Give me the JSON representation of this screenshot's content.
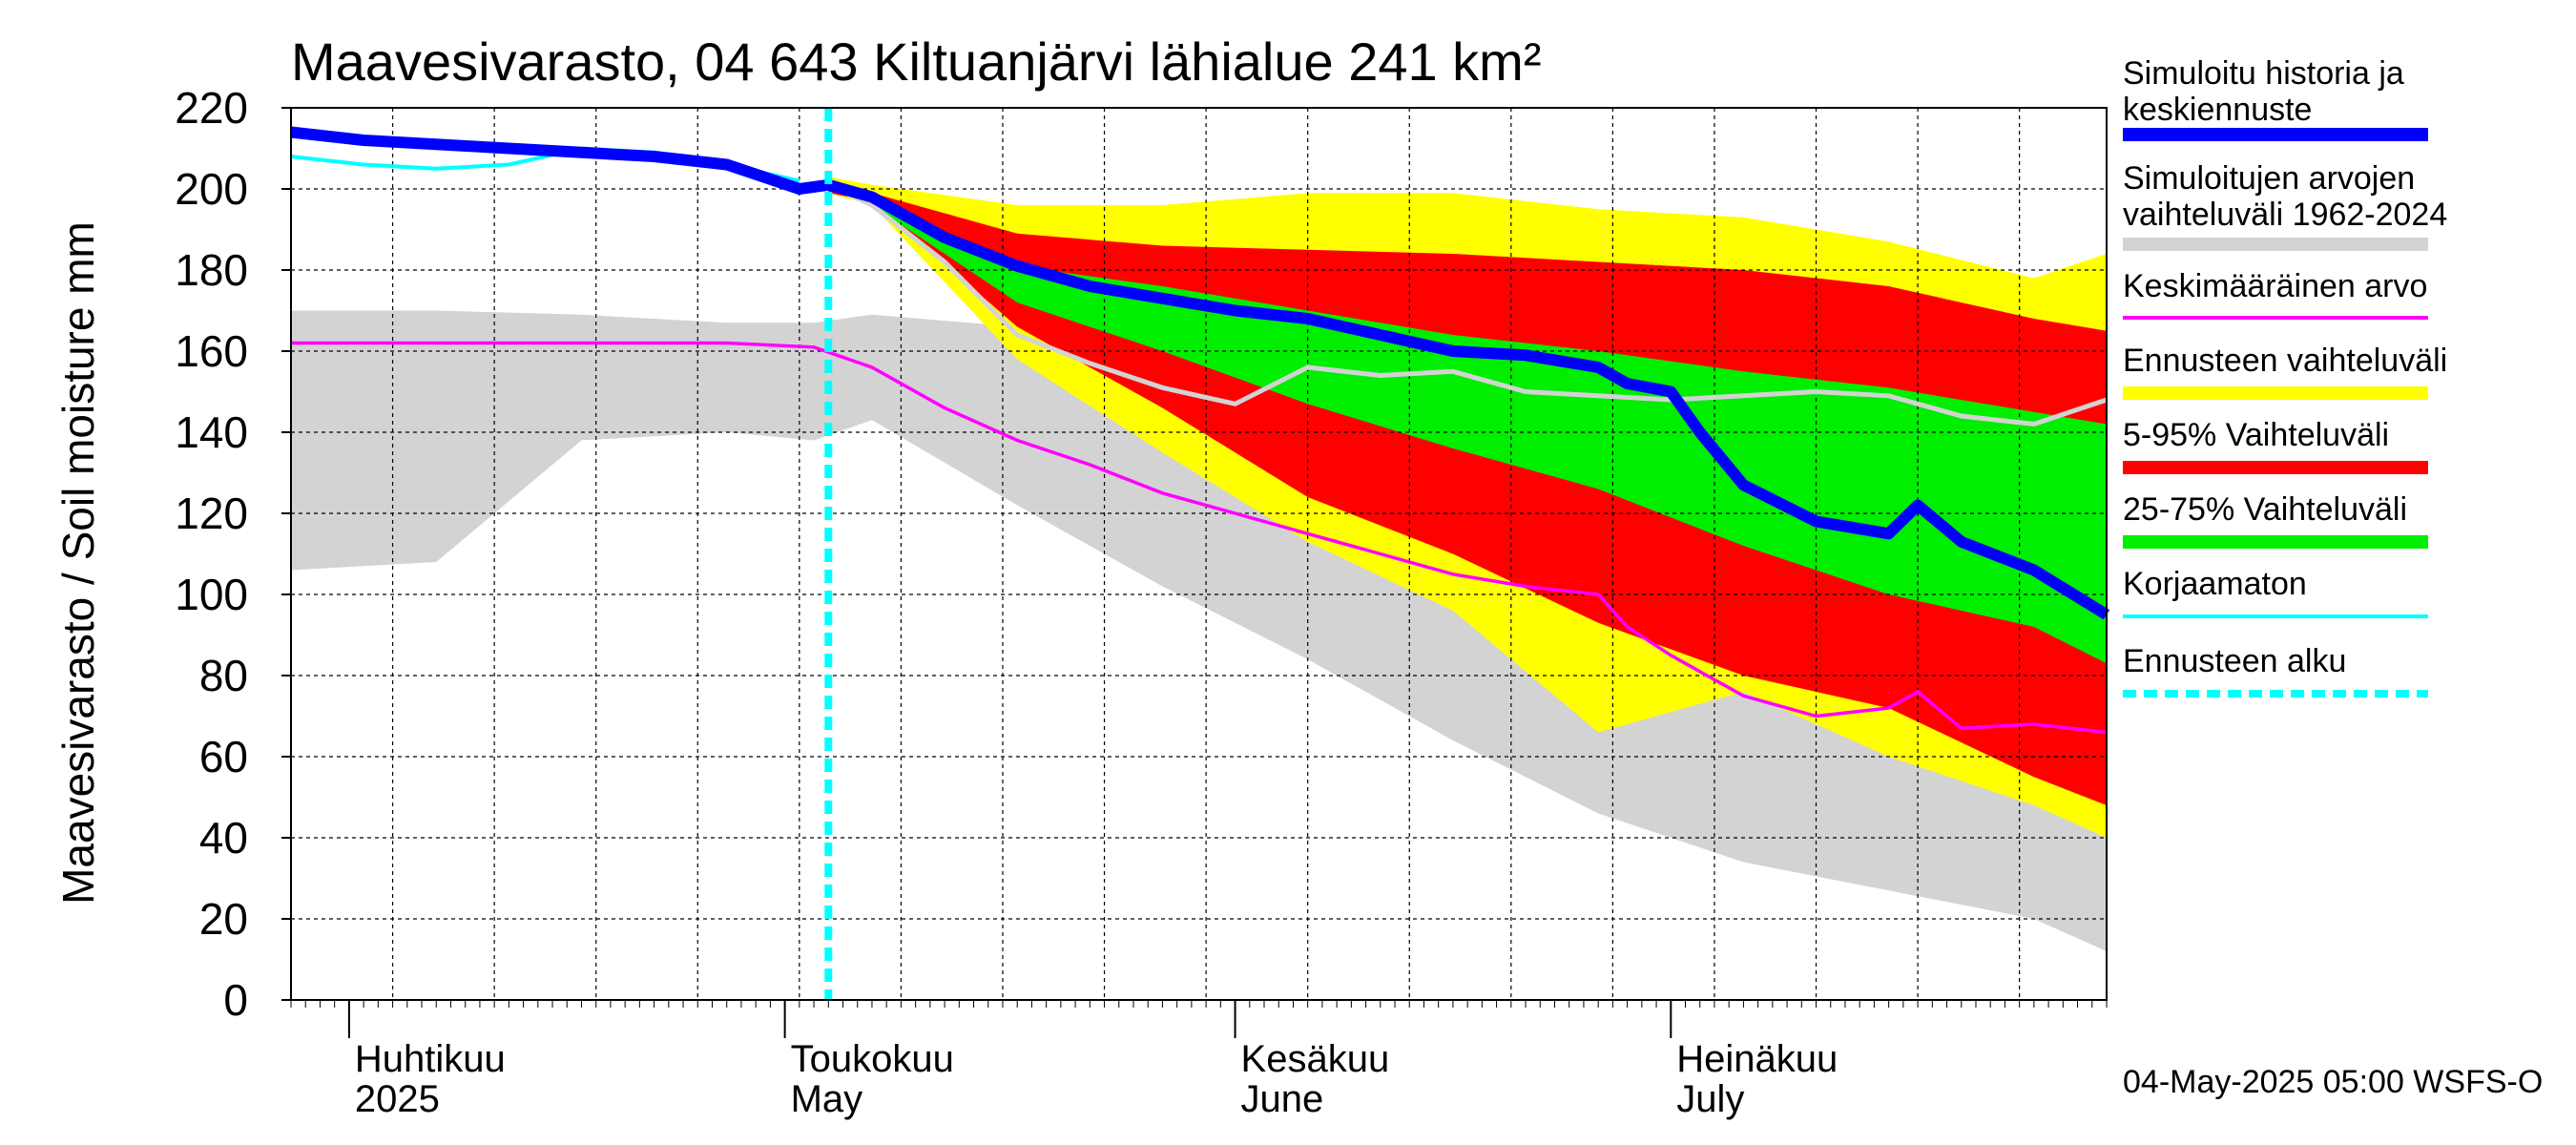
{
  "chart_data": {
    "type": "area",
    "title": "Maavesivarasto, 04 643 Kiltuanjärvi lähialue 241 km²",
    "ylabel": "Maavesivarasto / Soil moisture   mm",
    "ylim": [
      0,
      220
    ],
    "yticks": [
      0,
      20,
      40,
      60,
      80,
      100,
      120,
      140,
      160,
      180,
      200,
      220
    ],
    "xlim": [
      "2025-03-28",
      "2025-07-31"
    ],
    "forecast_start": "2025-05-04",
    "months": [
      {
        "fi": "Huhtikuu",
        "en": "2025",
        "date": "2025-04-01"
      },
      {
        "fi": "Toukokuu",
        "en": "May",
        "date": "2025-05-01"
      },
      {
        "fi": "Kesäkuu",
        "en": "June",
        "date": "2025-06-01"
      },
      {
        "fi": "Heinäkuu",
        "en": "July",
        "date": "2025-07-01"
      }
    ],
    "series": {
      "historical_range": {
        "days": [
          0,
          10,
          20,
          30,
          36,
          40,
          50,
          60,
          70,
          80,
          90,
          100,
          110,
          120,
          125
        ],
        "upper": [
          170,
          170,
          169,
          167,
          167,
          169,
          166,
          164,
          161,
          160,
          159,
          158,
          158,
          160,
          161
        ],
        "lower": [
          106,
          108,
          138,
          140,
          138,
          143,
          122,
          102,
          84,
          64,
          46,
          34,
          27,
          20,
          12
        ]
      },
      "forecast_yellow": {
        "days": [
          37,
          40,
          50,
          60,
          70,
          80,
          90,
          100,
          110,
          120,
          125
        ],
        "upper": [
          203,
          201,
          196,
          196,
          199,
          199,
          195,
          193,
          187,
          178,
          184
        ],
        "lower": [
          199,
          196,
          158,
          135,
          113,
          96,
          66,
          76,
          60,
          48,
          40
        ]
      },
      "forecast_red": {
        "days": [
          37,
          40,
          50,
          60,
          70,
          80,
          90,
          100,
          110,
          120,
          125
        ],
        "upper": [
          202,
          199,
          189,
          186,
          185,
          184,
          182,
          180,
          176,
          168,
          165
        ],
        "lower": [
          199,
          197,
          166,
          146,
          124,
          110,
          93,
          80,
          72,
          55,
          48
        ]
      },
      "forecast_green": {
        "days": [
          37,
          40,
          50,
          60,
          70,
          80,
          90,
          100,
          110,
          120,
          125
        ],
        "upper": [
          201,
          197,
          181,
          176,
          170,
          164,
          160,
          155,
          151,
          145,
          142
        ],
        "lower": [
          200,
          196,
          172,
          160,
          147,
          136,
          126,
          112,
          100,
          92,
          83
        ]
      },
      "simulated_history_forecast": {
        "name": "Simuloitu historia ja keskiennuste",
        "days": [
          0,
          5,
          10,
          15,
          20,
          25,
          30,
          35,
          37,
          40,
          45,
          50,
          55,
          60,
          65,
          70,
          75,
          80,
          85,
          90,
          92,
          95,
          97,
          100,
          105,
          110,
          112,
          115,
          120,
          125
        ],
        "values": [
          214,
          212,
          211,
          210,
          209,
          208,
          206,
          200,
          201,
          198,
          188,
          181,
          176,
          173,
          170,
          168,
          164,
          160,
          159,
          156,
          152,
          150,
          140,
          127,
          118,
          115,
          122,
          113,
          106,
          95
        ]
      },
      "gray_median": {
        "days": [
          37,
          40,
          45,
          50,
          55,
          60,
          65,
          70,
          75,
          80,
          85,
          90,
          95,
          100,
          105,
          110,
          115,
          120,
          125
        ],
        "values": [
          201,
          196,
          182,
          164,
          157,
          151,
          147,
          156,
          154,
          155,
          150,
          149,
          148,
          149,
          150,
          149,
          144,
          142,
          148
        ]
      },
      "mean": {
        "name": "Keskimääräinen arvo",
        "days": [
          0,
          10,
          20,
          30,
          36,
          40,
          45,
          50,
          55,
          60,
          65,
          70,
          75,
          80,
          85,
          90,
          92,
          95,
          100,
          105,
          110,
          112,
          115,
          120,
          125
        ],
        "values": [
          162,
          162,
          162,
          162,
          161,
          156,
          146,
          138,
          132,
          125,
          120,
          115,
          110,
          105,
          102,
          100,
          92,
          85,
          75,
          70,
          72,
          76,
          67,
          68,
          66
        ]
      },
      "uncorrected": {
        "name": "Korjaamaton",
        "days": [
          0,
          5,
          10,
          15,
          20,
          25,
          30,
          35
        ],
        "values": [
          208,
          206,
          205,
          206,
          210,
          209,
          206,
          202
        ]
      }
    },
    "legend": [
      {
        "label": "Simuloitu historia ja keskiennuste",
        "color": "#0000ff",
        "style": "thick"
      },
      {
        "label": "Simuloitujen arvojen vaihteluväli 1962-2024",
        "color": "#d3d3d3",
        "style": "band"
      },
      {
        "label": "Keskimääräinen arvo",
        "color": "#ff00ff",
        "style": "thin"
      },
      {
        "label": "Ennusteen vaihteluväli",
        "color": "#ffff00",
        "style": "band"
      },
      {
        "label": "5-95% Vaihteluväli",
        "color": "#ff0000",
        "style": "band"
      },
      {
        "label": "25-75% Vaihteluväli",
        "color": "#00ee00",
        "style": "band"
      },
      {
        "label": "Korjaamaton",
        "color": "#00ffff",
        "style": "thin"
      },
      {
        "label": "Ennusteen alku",
        "color": "#00ffff",
        "style": "dashed"
      }
    ],
    "colors": {
      "gray": "#d3d3d3",
      "yellow": "#ffff00",
      "red": "#ff0000",
      "green": "#00ee00",
      "blue": "#0000ff",
      "magenta": "#ff00ff",
      "cyan": "#00ffff",
      "median": "#d3d3d3"
    },
    "footer": "04-May-2025 05:00 WSFS-O"
  }
}
